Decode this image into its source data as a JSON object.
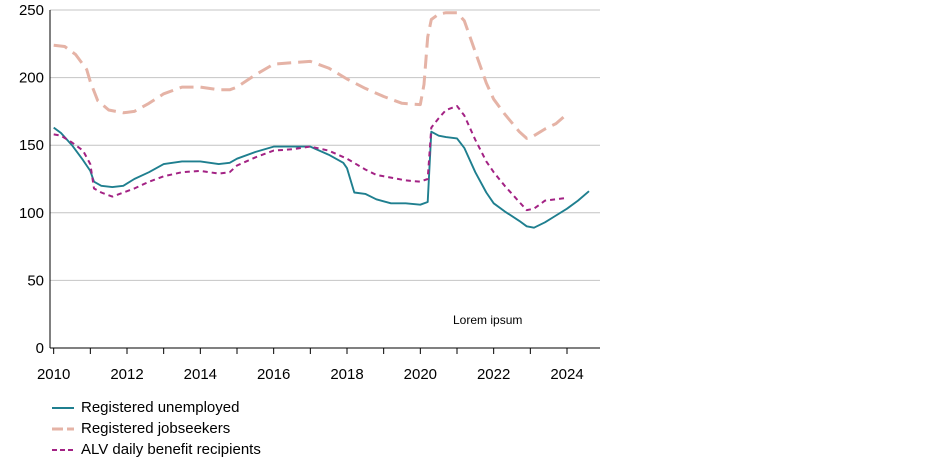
{
  "chart_data": {
    "type": "line",
    "title": "",
    "xlabel": "",
    "ylabel": "",
    "xlim": [
      2009.9,
      2024.9
    ],
    "ylim": [
      0,
      250
    ],
    "yticks": [
      0,
      50,
      100,
      150,
      200,
      250
    ],
    "xticks": [
      2010,
      2012,
      2014,
      2016,
      2018,
      2020,
      2022,
      2024
    ],
    "grid": "horizontal",
    "legend_position": "bottom-left",
    "annotation": "Lorem ipsum",
    "series": [
      {
        "name": "Registered unemployed",
        "color": "#1f7f8f",
        "style": "solid",
        "x": [
          2010.0,
          2010.2,
          2010.5,
          2010.8,
          2011.0,
          2011.1,
          2011.3,
          2011.6,
          2011.9,
          2012.2,
          2012.6,
          2013.0,
          2013.5,
          2014.0,
          2014.5,
          2014.8,
          2015.0,
          2015.5,
          2016.0,
          2016.5,
          2017.0,
          2017.5,
          2017.9,
          2018.0,
          2018.2,
          2018.5,
          2018.8,
          2019.2,
          2019.6,
          2020.0,
          2020.2,
          2020.3,
          2020.5,
          2020.7,
          2021.0,
          2021.2,
          2021.5,
          2021.8,
          2022.0,
          2022.3,
          2022.7,
          2022.9,
          2023.1,
          2023.4,
          2023.7,
          2024.0,
          2024.3,
          2024.6
        ],
        "y": [
          163,
          159,
          150,
          139,
          131,
          123,
          120,
          119,
          120,
          125,
          130,
          136,
          138,
          138,
          136,
          137,
          140,
          145,
          149,
          149,
          149,
          143,
          137,
          133,
          115,
          114,
          110,
          107,
          107,
          106,
          108,
          160,
          157,
          156,
          155,
          148,
          130,
          115,
          107,
          101,
          94,
          90,
          89,
          93,
          98,
          103,
          109,
          116
        ]
      },
      {
        "name": "Registered jobseekers",
        "color": "#e5b3a6",
        "style": "long-dash",
        "x": [
          2010.0,
          2010.3,
          2010.6,
          2010.9,
          2011.0,
          2011.2,
          2011.5,
          2011.9,
          2012.2,
          2012.6,
          2013.0,
          2013.5,
          2014.0,
          2014.5,
          2014.8,
          2015.0,
          2015.5,
          2016.0,
          2016.5,
          2017.0,
          2017.5,
          2018.0,
          2018.5,
          2019.0,
          2019.5,
          2020.0,
          2020.1,
          2020.2,
          2020.3,
          2020.5,
          2020.7,
          2021.0,
          2021.2,
          2021.5,
          2021.8,
          2022.0,
          2022.3,
          2022.7,
          2022.9,
          2023.1,
          2023.4,
          2023.7,
          2024.0
        ],
        "y": [
          224,
          223,
          217,
          206,
          197,
          183,
          176,
          174,
          175,
          181,
          188,
          193,
          193,
          191,
          191,
          193,
          202,
          210,
          211,
          212,
          207,
          199,
          192,
          186,
          181,
          180,
          195,
          230,
          243,
          247,
          248,
          248,
          242,
          219,
          196,
          184,
          173,
          160,
          155,
          157,
          162,
          166,
          173
        ]
      },
      {
        "name": "ALV daily benefit recipients",
        "color": "#a32284",
        "style": "short-dash",
        "x": [
          2010.0,
          2010.2,
          2010.5,
          2010.8,
          2011.0,
          2011.1,
          2011.3,
          2011.6,
          2011.9,
          2012.2,
          2012.6,
          2013.0,
          2013.5,
          2014.0,
          2014.5,
          2014.8,
          2015.0,
          2015.5,
          2016.0,
          2016.5,
          2017.0,
          2017.5,
          2018.0,
          2018.5,
          2018.8,
          2019.2,
          2019.6,
          2020.0,
          2020.2,
          2020.3,
          2020.5,
          2020.7,
          2021.0,
          2021.2,
          2021.5,
          2021.8,
          2022.0,
          2022.3,
          2022.7,
          2022.9,
          2023.1,
          2023.4,
          2023.7,
          2024.0
        ],
        "y": [
          158,
          157,
          152,
          146,
          136,
          118,
          115,
          112,
          115,
          118,
          123,
          127,
          130,
          131,
          129,
          130,
          135,
          141,
          146,
          147,
          149,
          146,
          140,
          132,
          128,
          126,
          124,
          123,
          125,
          163,
          170,
          176,
          179,
          172,
          154,
          138,
          130,
          120,
          108,
          102,
          103,
          109,
          110,
          111
        ]
      }
    ]
  }
}
